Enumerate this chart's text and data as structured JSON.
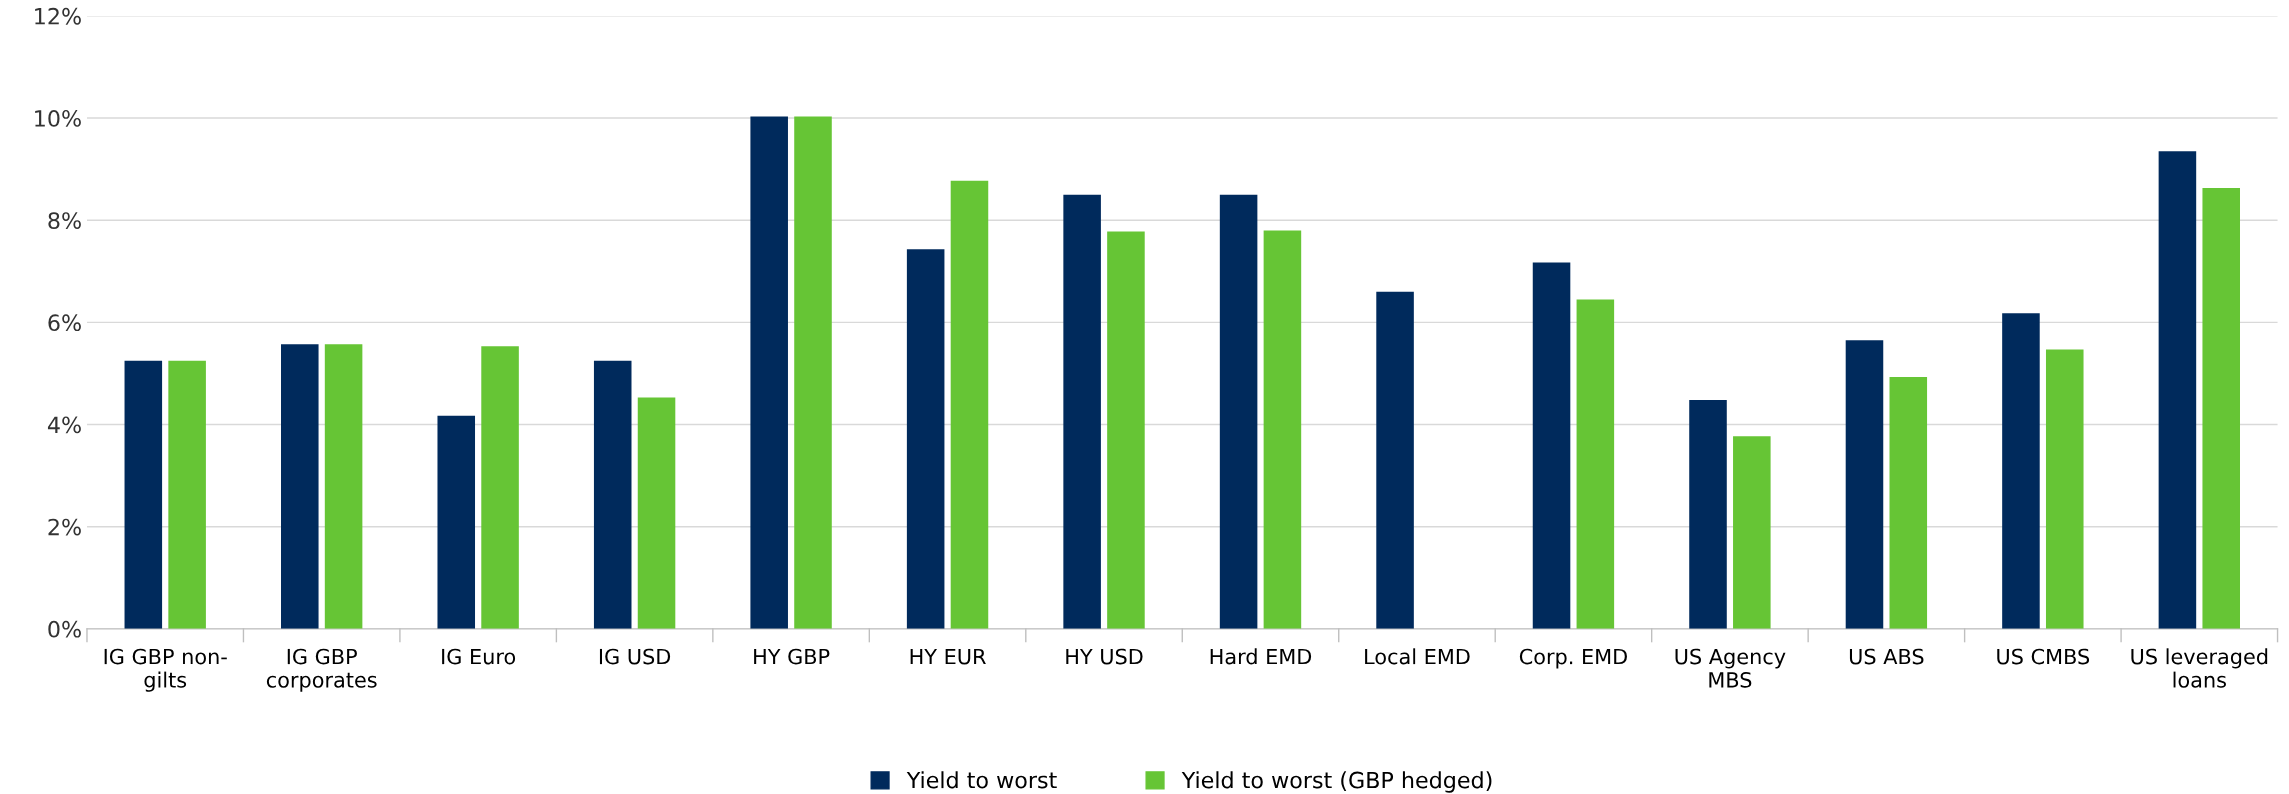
{
  "chart_data": {
    "type": "bar",
    "categories": [
      "IG GBP non-\ngilts",
      "IG GBP\ncorporates",
      "IG Euro",
      "IG USD",
      "HY GBP",
      "HY EUR",
      "HY USD",
      "Hard EMD",
      "Local EMD",
      "Corp. EMD",
      "US Agency\nMBS",
      "US ABS",
      "US CMBS",
      "US leveraged\nloans"
    ],
    "series": [
      {
        "name": "Yield to worst",
        "color": "#002a5c",
        "values": [
          5.25,
          5.57,
          4.17,
          5.25,
          10.03,
          7.43,
          8.5,
          8.5,
          6.6,
          7.17,
          4.48,
          5.65,
          6.18,
          9.35
        ]
      },
      {
        "name": "Yield to worst (GBP hedged)",
        "color": "#66c535",
        "values": [
          5.25,
          5.57,
          5.53,
          4.53,
          10.03,
          8.77,
          7.78,
          7.8,
          null,
          6.45,
          3.77,
          4.93,
          5.47,
          8.63
        ]
      }
    ],
    "ylim": [
      0,
      12
    ],
    "yticks": [
      {
        "value": 0,
        "label": "0%"
      },
      {
        "value": 2,
        "label": "2%"
      },
      {
        "value": 4,
        "label": "4%"
      },
      {
        "value": 6,
        "label": "6%"
      },
      {
        "value": 8,
        "label": "8%"
      },
      {
        "value": 10,
        "label": "10%"
      },
      {
        "value": 12,
        "label": "12%"
      }
    ],
    "grid": "y",
    "legend": "bottom"
  }
}
